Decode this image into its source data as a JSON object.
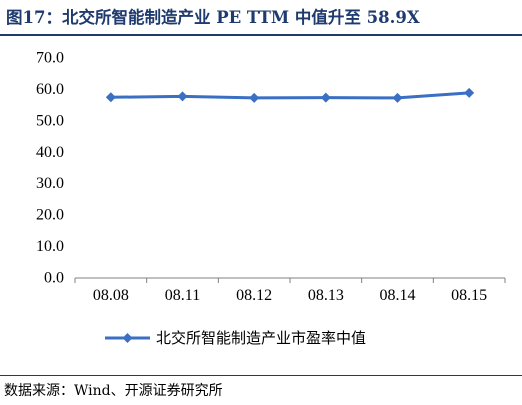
{
  "figure": {
    "title": "图17：北交所智能制造产业 PE TTM 中值升至 58.9X",
    "source": "数据来源：Wind、开源证券研究所"
  },
  "chart_data": {
    "type": "line",
    "title": "",
    "xlabel": "",
    "ylabel": "",
    "categories": [
      "08.08",
      "08.11",
      "08.12",
      "08.13",
      "08.14",
      "08.15"
    ],
    "series": [
      {
        "name": "北交所智能制造产业市盈率中值",
        "values": [
          57.5,
          57.8,
          57.3,
          57.4,
          57.3,
          58.9
        ],
        "color": "#3a6fc4"
      }
    ],
    "ylim": [
      0,
      70
    ],
    "yticks": [
      "0.0",
      "10.0",
      "20.0",
      "30.0",
      "40.0",
      "50.0",
      "60.0",
      "70.0"
    ],
    "grid": false,
    "legend": "bottom-center",
    "marker": "diamond"
  }
}
